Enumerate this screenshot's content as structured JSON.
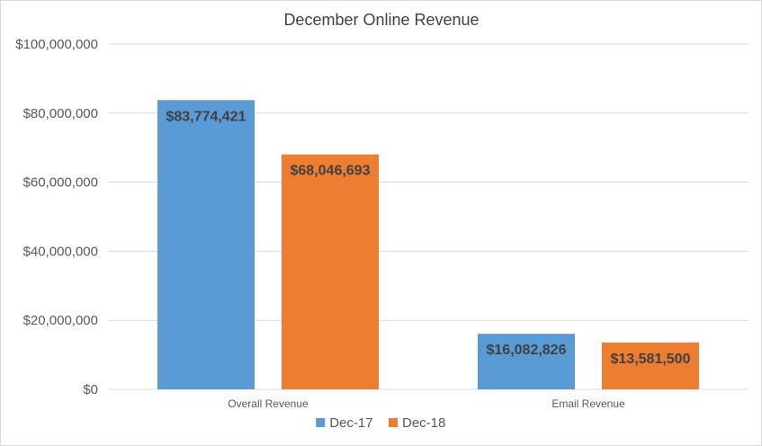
{
  "chart_data": {
    "type": "bar",
    "title": "December Online Revenue",
    "xlabel": "",
    "ylabel": "",
    "categories": [
      "Overall Revenue",
      "Email Revenue"
    ],
    "series": [
      {
        "name": "Dec-17",
        "color": "#5b9bd5",
        "values": [
          83774421,
          16082826
        ],
        "labels": [
          "$83,774,421",
          "$16,082,826"
        ]
      },
      {
        "name": "Dec-18",
        "color": "#ed7d31",
        "values": [
          68046693,
          13581500
        ],
        "labels": [
          "$68,046,693",
          "$13,581,500"
        ]
      }
    ],
    "ylim": [
      0,
      100000000
    ],
    "yticks": [
      0,
      20000000,
      40000000,
      60000000,
      80000000,
      100000000
    ],
    "ytick_labels": [
      "$0",
      "$20,000,000",
      "$40,000,000",
      "$60,000,000",
      "$80,000,000",
      "$100,000,000"
    ],
    "grid": true,
    "legend_position": "bottom"
  }
}
